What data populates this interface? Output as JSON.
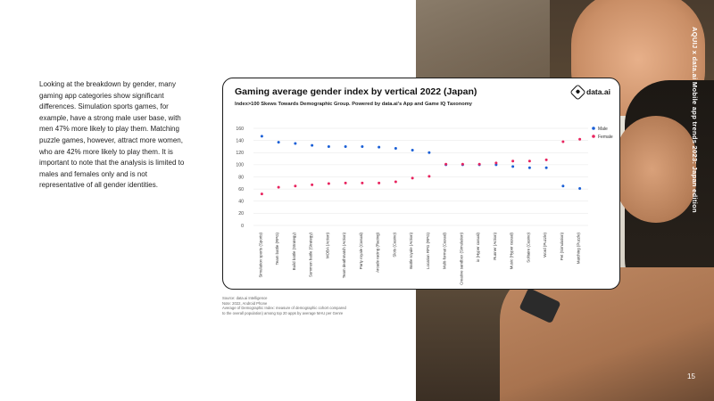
{
  "page": {
    "paragraph": "Looking at the breakdown by gender, many gaming app categories show significant differences. Simulation sports games, for example, have a strong male user base, with men 47% more likely to play them. Matching puzzle games, however, attract more women, who are 42% more likely to play them. It is important to note that the analysis is limited to males and females only and is not representative of all gender identities.",
    "vertical_text": "AQUIJ x data.ai    Mobile app trends 2023: Japan edition",
    "page_number": "15",
    "footnote_lines": [
      "Source: data.ai Intelligence",
      "Note: 2022, Android Phone",
      "Average of Demographic Index: measure of demographic cohort compared",
      "to the overall population) among top 20 apps by average MAU per Genre"
    ]
  },
  "brand": {
    "name": "data.ai",
    "icon": "data-ai-logo-icon"
  },
  "colors": {
    "male": "#1a5fd6",
    "female": "#e8245f",
    "grid": "#e6e6e6",
    "text": "#222222"
  },
  "chart_data": {
    "type": "scatter",
    "title": "Gaming average gender index by vertical 2022 (Japan)",
    "subtitle": "Index>100 Skews Towards Demographic Group. Powered by data.ai's App and Game IQ Taxonomy",
    "categories": [
      "Simulation sports (Sports)",
      "Team battle (RPG)",
      "Build battle (Strategy)",
      "Summon battle (Strategy)",
      "MOBA (Action)",
      "Team deathmatch (Action)",
      "Party royale (Casual)",
      "Arcade racing (Racing)",
      "Slots (Casino)",
      "Battle royale (Action)",
      "Location RPG (RPG)",
      "Multi-format (Casual)",
      "Creative sandbox (Simulation)",
      "io (Hyper casual)",
      "Runner (Action)",
      "Music (Hyper casual)",
      "Solitaire (Casino)",
      "Word (Puzzle)",
      "Pet (Simulation)",
      "Matching (Puzzle)"
    ],
    "series": [
      {
        "name": "Male",
        "values": [
          147,
          137,
          135,
          132,
          130,
          130,
          130,
          129,
          127,
          124,
          120,
          100,
          100,
          100,
          100,
          97,
          95,
          95,
          65,
          61
        ]
      },
      {
        "name": "Female",
        "values": [
          52,
          63,
          65,
          67,
          69,
          70,
          70,
          70,
          72,
          78,
          81,
          101,
          101,
          101,
          103,
          106,
          106,
          108,
          138,
          142
        ]
      }
    ],
    "ylim": [
      0,
      160
    ],
    "yticks": [
      0,
      20,
      40,
      60,
      80,
      100,
      120,
      140,
      160
    ],
    "grid": true,
    "legend_position": "top-right"
  }
}
